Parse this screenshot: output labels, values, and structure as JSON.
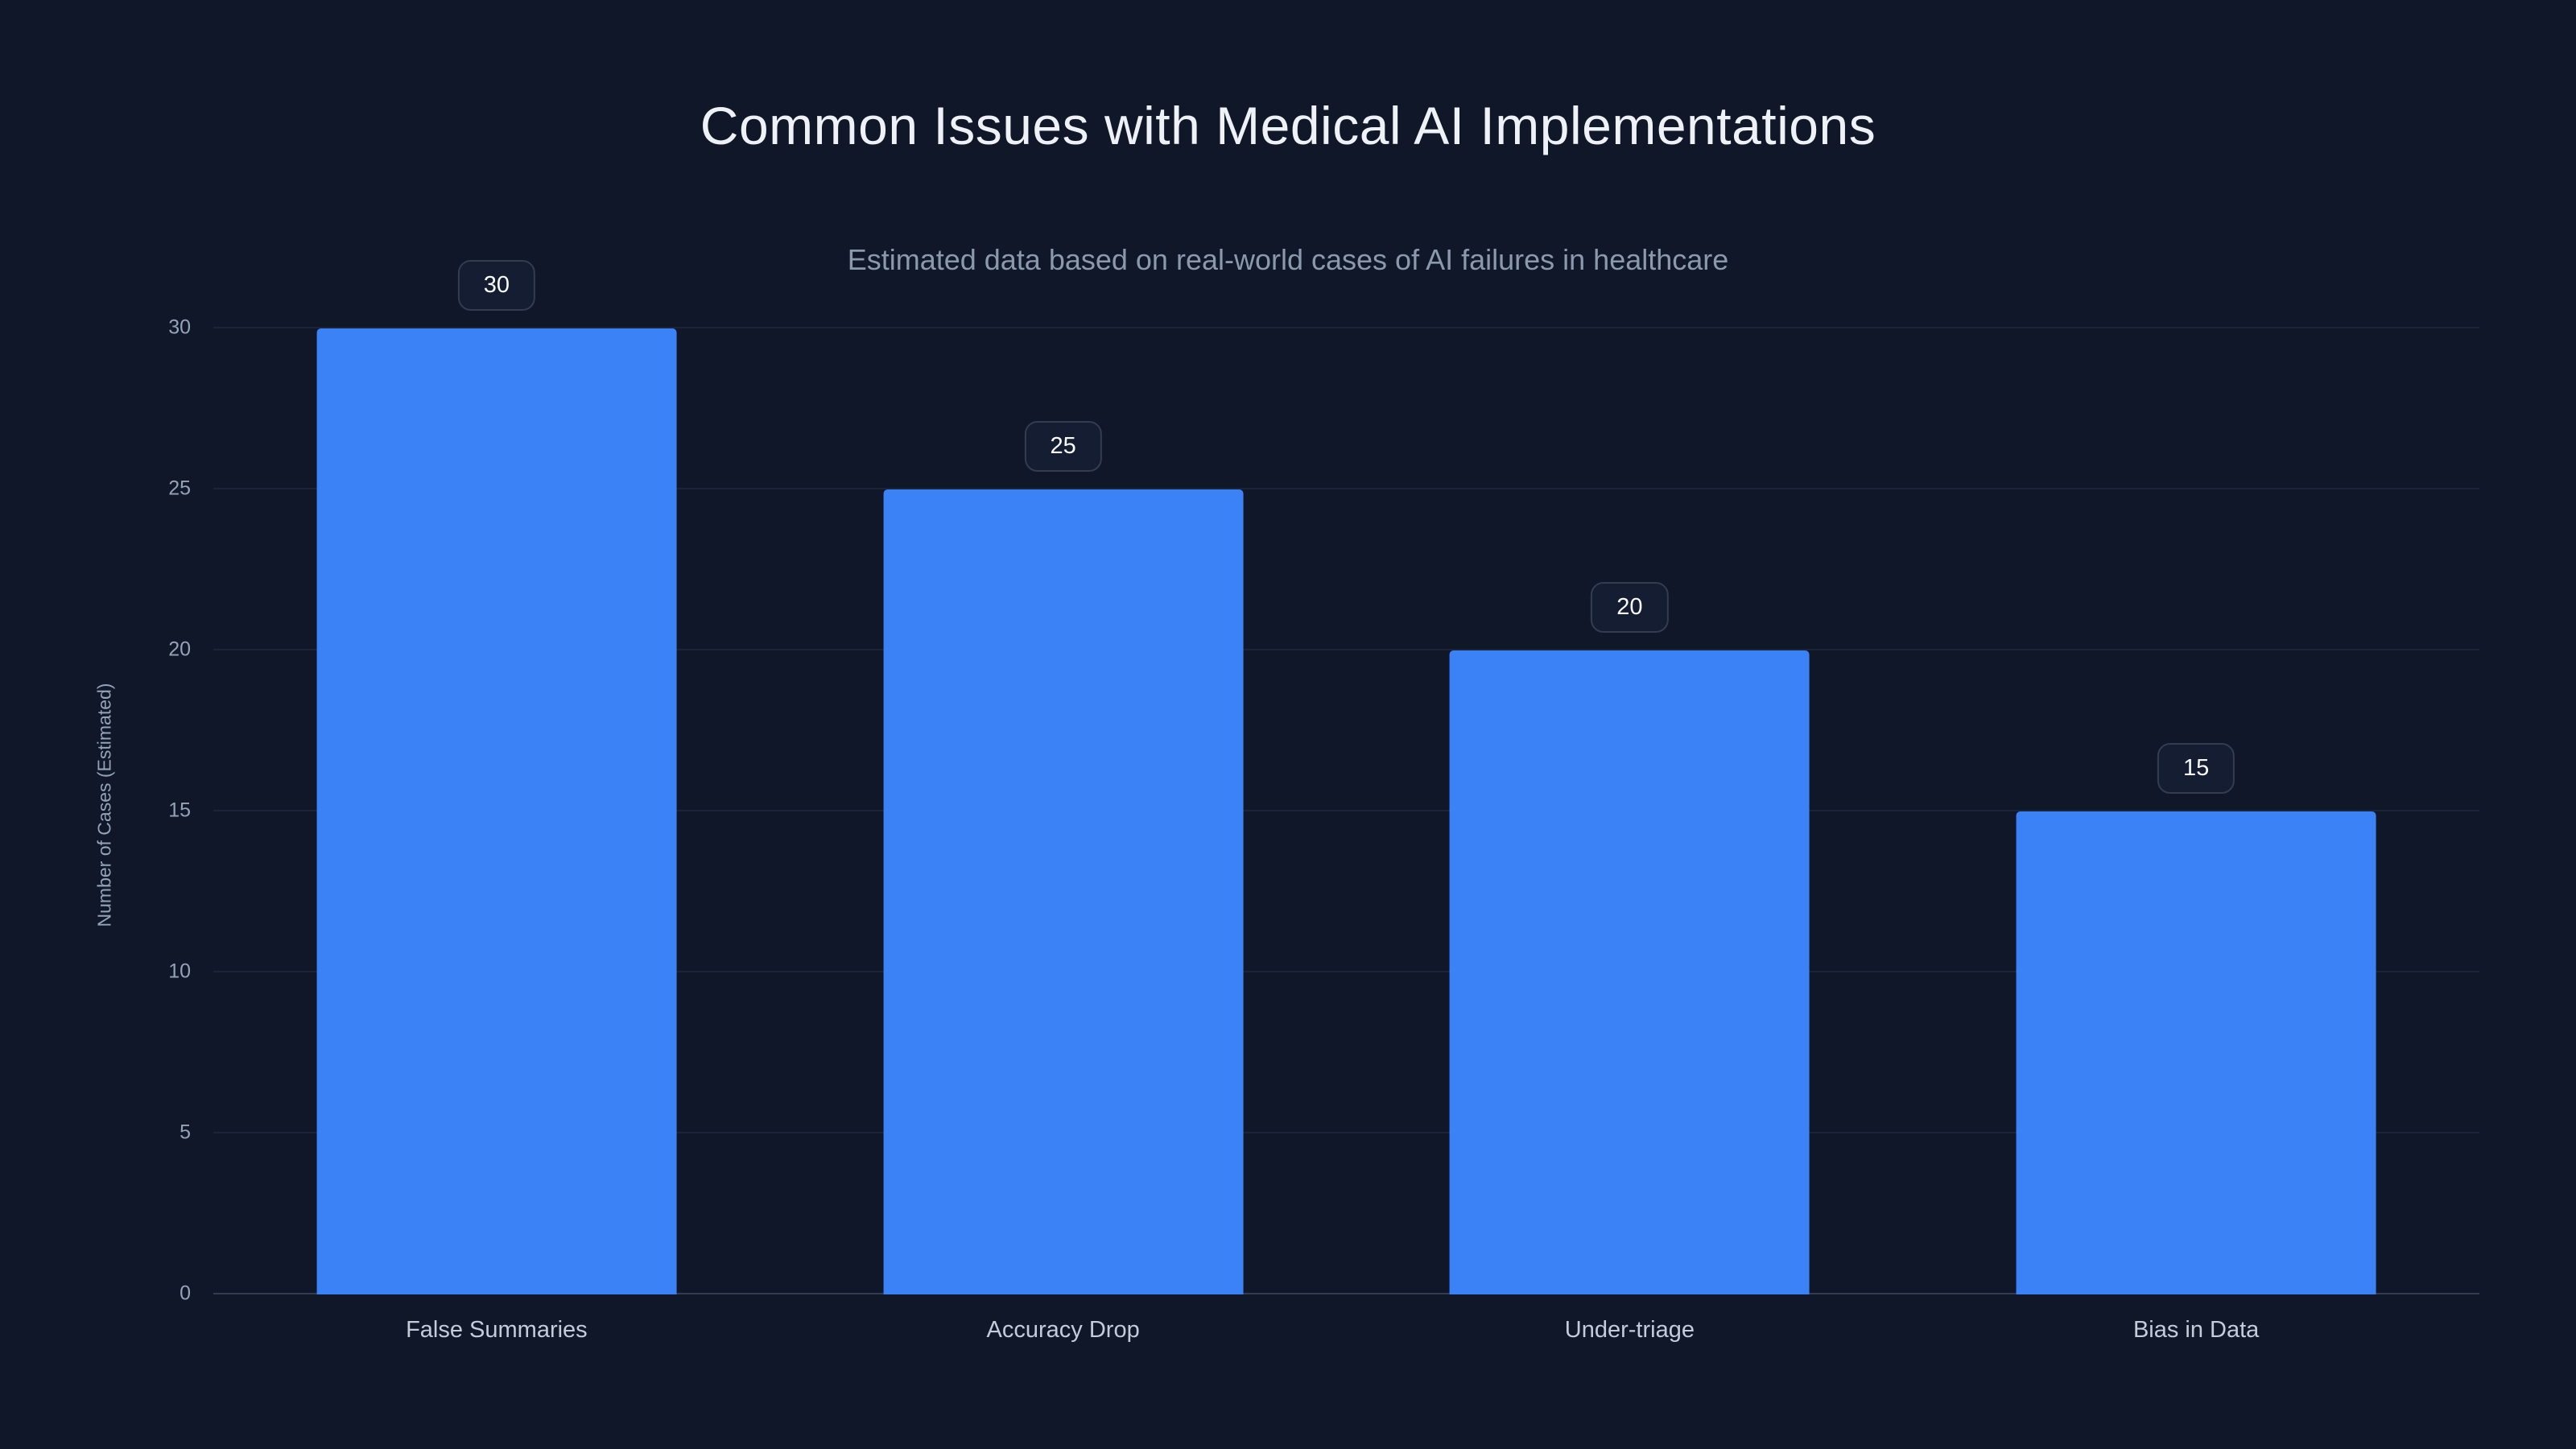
{
  "chart_data": {
    "type": "bar",
    "title": "Common Issues with Medical AI Implementations",
    "subtitle": "Estimated data based on real-world cases of AI failures in healthcare",
    "categories": [
      "False Summaries",
      "Accuracy Drop",
      "Under-triage",
      "Bias in Data"
    ],
    "values": [
      30,
      25,
      20,
      15
    ],
    "value_labels": [
      "30",
      "25",
      "20",
      "15"
    ],
    "xlabel": "",
    "ylabel": "Number of Cases (Estimated)",
    "ylim": [
      0,
      30
    ],
    "yticks": [
      "0",
      "5",
      "10",
      "15",
      "20",
      "25",
      "30"
    ],
    "grid": true,
    "legend_position": "none",
    "bar_color": "#3b82f6",
    "background_color": "#0f1729"
  }
}
